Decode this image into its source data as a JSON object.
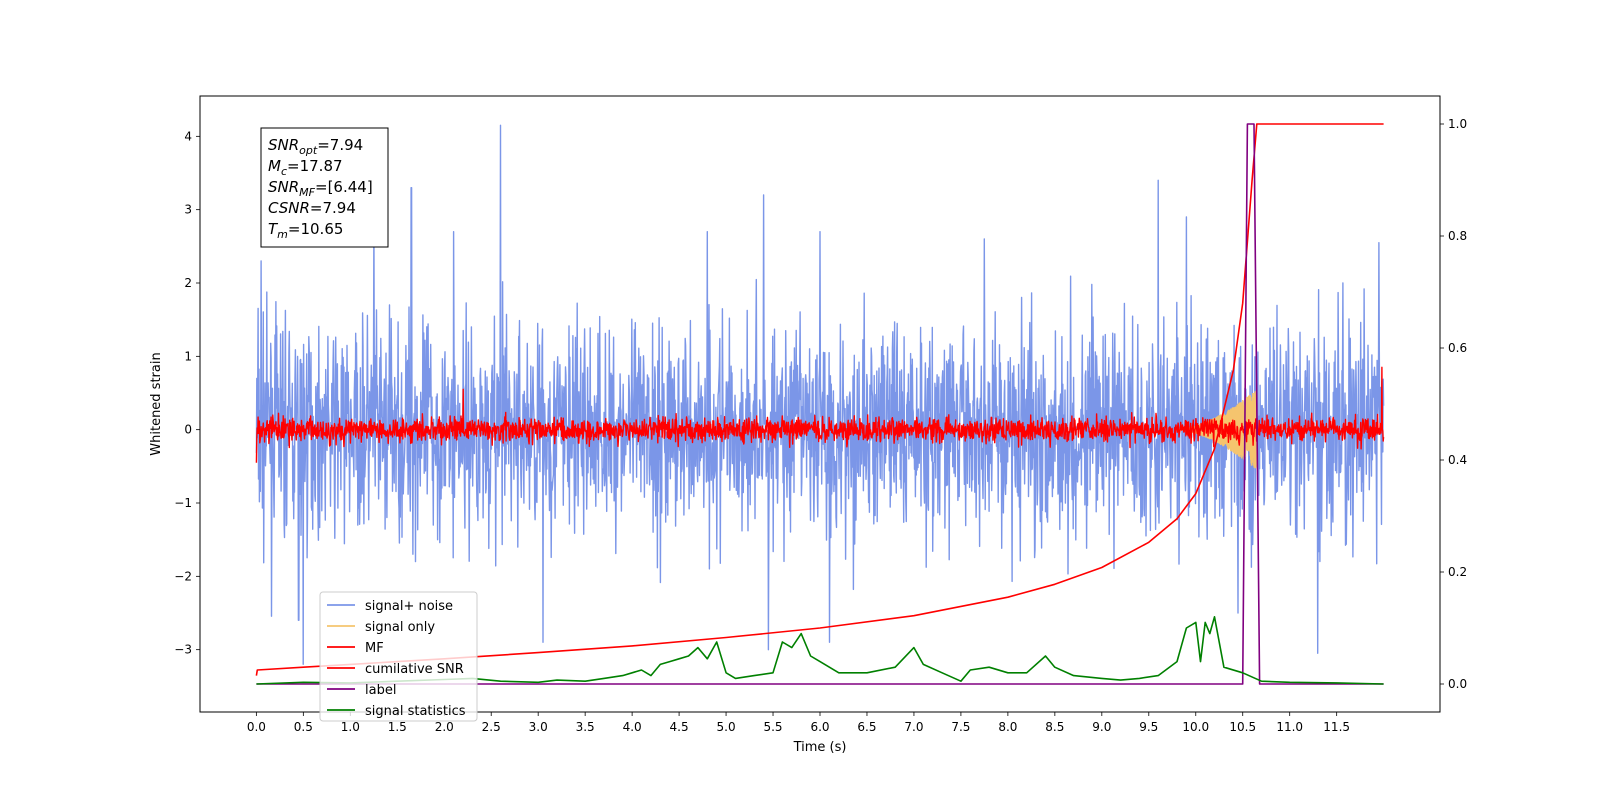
{
  "chart_data": {
    "type": "line",
    "xlabel": "Time (s)",
    "ylabel": "Whitened strain",
    "xlim": [
      -0.6,
      12.6
    ],
    "ylim": [
      -3.85,
      4.55
    ],
    "y2lim": [
      -0.05,
      1.05
    ],
    "x_ticks": [
      0.0,
      0.5,
      1.0,
      1.5,
      2.0,
      2.5,
      3.0,
      3.5,
      4.0,
      4.5,
      5.0,
      5.5,
      6.0,
      6.5,
      7.0,
      7.5,
      8.0,
      8.5,
      9.0,
      9.5,
      10.0,
      10.5,
      11.0,
      11.5
    ],
    "x_tick_labels": [
      "0.0",
      "0.5",
      "1.0",
      "1.5",
      "2.0",
      "2.5",
      "3.0",
      "3.5",
      "4.0",
      "4.5",
      "5.0",
      "5.5",
      "6.0",
      "6.5",
      "7.0",
      "7.5",
      "8.0",
      "8.5",
      "9.0",
      "9.5",
      "10.0",
      "10.5",
      "11.0",
      "11.5"
    ],
    "y_ticks": [
      -3,
      -2,
      -1,
      0,
      1,
      2,
      3,
      4
    ],
    "y_tick_labels": [
      "−3",
      "−2",
      "−1",
      "0",
      "1",
      "2",
      "3",
      "4"
    ],
    "y2_ticks": [
      0.0,
      0.2,
      0.4,
      0.6,
      0.8,
      1.0
    ],
    "y2_tick_labels": [
      "0.0",
      "0.2",
      "0.4",
      "0.6",
      "0.8",
      "1.0"
    ],
    "legend_position": "lower-left",
    "colors": {
      "signal_noise": "#7b96e8",
      "signal_only": "#f5c46e",
      "mf": "#ff0000",
      "cumulative_snr": "#ff0000",
      "label": "#800080",
      "signal_statistics": "#008000"
    },
    "annotation": {
      "lines": [
        {
          "sym": "SNR",
          "sub": "opt",
          "value": "=7.94"
        },
        {
          "sym": "M",
          "sub": "c",
          "value": "=17.87"
        },
        {
          "sym": "SNR",
          "sub": "MF",
          "value": "=[6.44]"
        },
        {
          "sym": "CSNR",
          "sub": "",
          "value": "=7.94"
        },
        {
          "sym": "T",
          "sub": "m",
          "value": "=10.65"
        }
      ]
    },
    "series": [
      {
        "name": "signal+ noise",
        "axis": "left",
        "style": "noise",
        "x_range": [
          0.0,
          12.0
        ],
        "envelope_upper": 2.3,
        "envelope_lower": -2.4,
        "peaks": [
          {
            "x": 0.05,
            "y": 2.3
          },
          {
            "x": 0.45,
            "y": -2.6
          },
          {
            "x": 0.5,
            "y": -3.2
          },
          {
            "x": 1.25,
            "y": 2.9
          },
          {
            "x": 1.65,
            "y": 3.3
          },
          {
            "x": 2.6,
            "y": 4.15
          },
          {
            "x": 2.1,
            "y": 2.7
          },
          {
            "x": 3.05,
            "y": -2.9
          },
          {
            "x": 4.8,
            "y": 2.7
          },
          {
            "x": 5.4,
            "y": 3.2
          },
          {
            "x": 5.45,
            "y": -3.0
          },
          {
            "x": 6.0,
            "y": 2.7
          },
          {
            "x": 6.1,
            "y": -2.9
          },
          {
            "x": 7.75,
            "y": 2.6
          },
          {
            "x": 9.6,
            "y": 3.4
          },
          {
            "x": 9.9,
            "y": 2.9
          },
          {
            "x": 10.45,
            "y": -2.5
          },
          {
            "x": 11.3,
            "y": -3.05
          },
          {
            "x": 11.95,
            "y": 2.55
          }
        ]
      },
      {
        "name": "signal only",
        "axis": "left",
        "style": "chirp",
        "x_start": 9.8,
        "x_end": 10.65,
        "max_amplitude": 0.55
      },
      {
        "name": "MF",
        "axis": "left",
        "style": "noise",
        "x_range": [
          0.0,
          12.0
        ],
        "envelope_upper": 0.3,
        "envelope_lower": -0.25,
        "peaks": [
          {
            "x": 0.0,
            "y": 1.0
          },
          {
            "x": 0.0,
            "y": -0.45
          },
          {
            "x": 2.2,
            "y": 0.55
          },
          {
            "x": 11.98,
            "y": 0.85
          }
        ]
      },
      {
        "name": "cumilative SNR",
        "axis": "right",
        "x": [
          0.0,
          0.01,
          0.5,
          1.0,
          2.0,
          3.0,
          4.0,
          5.0,
          6.0,
          7.0,
          8.0,
          8.5,
          9.0,
          9.5,
          9.8,
          10.0,
          10.2,
          10.4,
          10.5,
          10.6,
          10.65,
          12.0
        ],
        "y": [
          0.015,
          0.025,
          0.03,
          0.035,
          0.045,
          0.056,
          0.068,
          0.083,
          0.1,
          0.122,
          0.155,
          0.178,
          0.208,
          0.253,
          0.295,
          0.34,
          0.42,
          0.56,
          0.68,
          0.9,
          1.0,
          1.0
        ]
      },
      {
        "name": "label",
        "axis": "right",
        "x": [
          0.0,
          10.5,
          10.55,
          10.62,
          10.68,
          12.0
        ],
        "y": [
          0.0,
          0.0,
          1.0,
          1.0,
          0.0,
          0.0
        ]
      },
      {
        "name": "signal statistics",
        "axis": "right",
        "x": [
          0.0,
          0.5,
          1.0,
          1.5,
          2.0,
          2.3,
          2.6,
          3.0,
          3.2,
          3.5,
          3.7,
          3.9,
          4.0,
          4.1,
          4.2,
          4.3,
          4.4,
          4.5,
          4.6,
          4.7,
          4.8,
          4.9,
          5.0,
          5.1,
          5.3,
          5.5,
          5.6,
          5.7,
          5.8,
          5.9,
          6.0,
          6.2,
          6.5,
          6.8,
          7.0,
          7.1,
          7.3,
          7.5,
          7.6,
          7.8,
          8.0,
          8.2,
          8.4,
          8.5,
          8.7,
          9.0,
          9.2,
          9.4,
          9.6,
          9.8,
          9.9,
          10.0,
          10.05,
          10.1,
          10.15,
          10.2,
          10.3,
          10.5,
          10.7,
          11.0,
          11.5,
          12.0
        ],
        "y": [
          0.0,
          0.003,
          0.002,
          0.005,
          0.008,
          0.01,
          0.005,
          0.003,
          0.007,
          0.005,
          0.01,
          0.015,
          0.02,
          0.025,
          0.015,
          0.035,
          0.04,
          0.045,
          0.05,
          0.065,
          0.045,
          0.075,
          0.02,
          0.01,
          0.015,
          0.02,
          0.075,
          0.065,
          0.09,
          0.05,
          0.04,
          0.02,
          0.02,
          0.03,
          0.065,
          0.035,
          0.02,
          0.005,
          0.025,
          0.03,
          0.02,
          0.02,
          0.05,
          0.03,
          0.015,
          0.01,
          0.007,
          0.01,
          0.015,
          0.04,
          0.1,
          0.11,
          0.04,
          0.11,
          0.09,
          0.12,
          0.03,
          0.02,
          0.005,
          0.003,
          0.002,
          0.0
        ]
      }
    ]
  }
}
